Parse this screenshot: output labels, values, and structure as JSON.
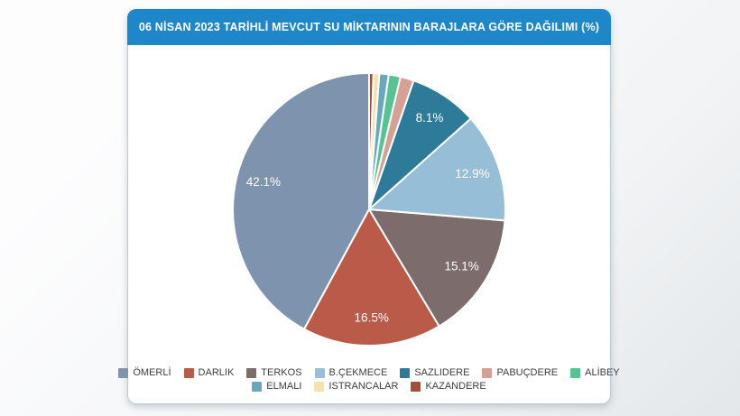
{
  "chart_data": {
    "type": "pie",
    "title": "06 NİSAN 2023 TARİHLİ MEVCUT SU MİKTARININ BARAJLARA GÖRE DAĞILIMI (%)",
    "unit": "%",
    "direction": "counter-clockwise",
    "start_angle_deg": 0,
    "legend_position": "bottom",
    "legend_rows": [
      [
        0,
        1,
        2,
        3,
        4,
        5,
        6
      ],
      [
        7,
        8,
        9
      ]
    ],
    "slices": [
      {
        "label": "ÖMERLİ",
        "value": 42.1,
        "color": "#7e94ae",
        "value_labeled": true
      },
      {
        "label": "DARLIK",
        "value": 16.5,
        "color": "#b95b48",
        "value_labeled": true
      },
      {
        "label": "TERKOS",
        "value": 15.1,
        "color": "#7d6c6c",
        "value_labeled": true
      },
      {
        "label": "B.ÇEKMECE",
        "value": 12.9,
        "color": "#97bed7",
        "value_labeled": true
      },
      {
        "label": "SAZLIDERE",
        "value": 8.1,
        "color": "#2d7b99",
        "value_labeled": true
      },
      {
        "label": "PABUÇDERE",
        "value": 1.6,
        "color": "#d4a192",
        "value_labeled": false
      },
      {
        "label": "ALİBEY",
        "value": 1.4,
        "color": "#55c392",
        "value_labeled": false
      },
      {
        "label": "ELMALI",
        "value": 1.1,
        "color": "#67a9ba",
        "value_labeled": false
      },
      {
        "label": "ISTRANCALAR",
        "value": 0.7,
        "color": "#f4e2ae",
        "value_labeled": false
      },
      {
        "label": "KAZANDERE",
        "value": 0.5,
        "color": "#a54c3a",
        "value_labeled": false
      }
    ],
    "visible_value_labels": [
      "42.1%",
      "16.5%",
      "15.1%",
      "12.9%",
      "8.1%"
    ],
    "colors": {
      "header_background": "#1e87c9",
      "header_text": "#ffffff",
      "slice_label_text": "#ffffff",
      "slice_border": "#ffffff",
      "legend_text": "#3d3d3d",
      "card_background": "#ffffff",
      "card_border": "#b8cdd8"
    }
  }
}
